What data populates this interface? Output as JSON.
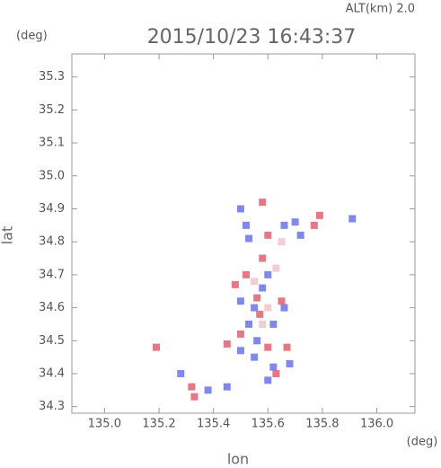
{
  "chart_data": {
    "type": "scatter",
    "title": "2015/10/23 16:43:37",
    "subtitle": "ALT(km) 2.0",
    "y_unit": "(deg)",
    "x_unit": "(deg)",
    "x_label": "lon",
    "y_label": "lat",
    "xlim": [
      134.88,
      136.14
    ],
    "ylim": [
      34.28,
      35.37
    ],
    "xticks": [
      {
        "value": 135,
        "label": "135.0"
      },
      135.2,
      135.4,
      135.6,
      135.8,
      {
        "value": 136,
        "label": "136.0"
      }
    ],
    "yticks": [
      34.3,
      34.4,
      34.5,
      34.6,
      34.7,
      34.8,
      34.9,
      {
        "value": 35,
        "label": "35.0"
      },
      35.1,
      35.2,
      35.3
    ],
    "series": [
      {
        "color": "#6a74e8",
        "x": [
          135.5,
          135.52,
          135.53,
          135.66,
          135.7,
          135.72,
          135.5,
          135.55,
          135.58,
          135.62,
          135.6,
          135.53,
          135.55,
          135.62,
          135.68,
          135.6,
          135.45,
          135.38,
          135.28,
          135.56,
          135.66,
          135.91,
          135.5
        ],
        "values": [
          34.9,
          34.85,
          34.81,
          34.85,
          34.86,
          34.82,
          34.62,
          34.6,
          34.66,
          34.55,
          34.7,
          34.55,
          34.45,
          34.42,
          34.43,
          34.38,
          34.36,
          34.35,
          34.4,
          34.5,
          34.6,
          34.87,
          34.47
        ]
      },
      {
        "color": "#e0606e",
        "x": [
          135.58,
          135.77,
          135.79,
          135.6,
          135.48,
          135.56,
          135.65,
          135.52,
          135.45,
          135.6,
          135.67,
          135.63,
          135.57,
          135.33,
          135.32,
          135.19,
          135.58,
          135.5
        ],
        "values": [
          34.92,
          34.85,
          34.88,
          34.82,
          34.67,
          34.63,
          34.62,
          34.7,
          34.49,
          34.48,
          34.48,
          34.4,
          34.58,
          34.33,
          34.36,
          34.48,
          34.75,
          34.52
        ]
      },
      {
        "color": "#f2c4cc",
        "x": [
          135.55,
          135.6,
          135.65,
          135.58,
          135.63
        ],
        "values": [
          34.68,
          34.6,
          34.8,
          34.55,
          34.72
        ]
      }
    ]
  }
}
